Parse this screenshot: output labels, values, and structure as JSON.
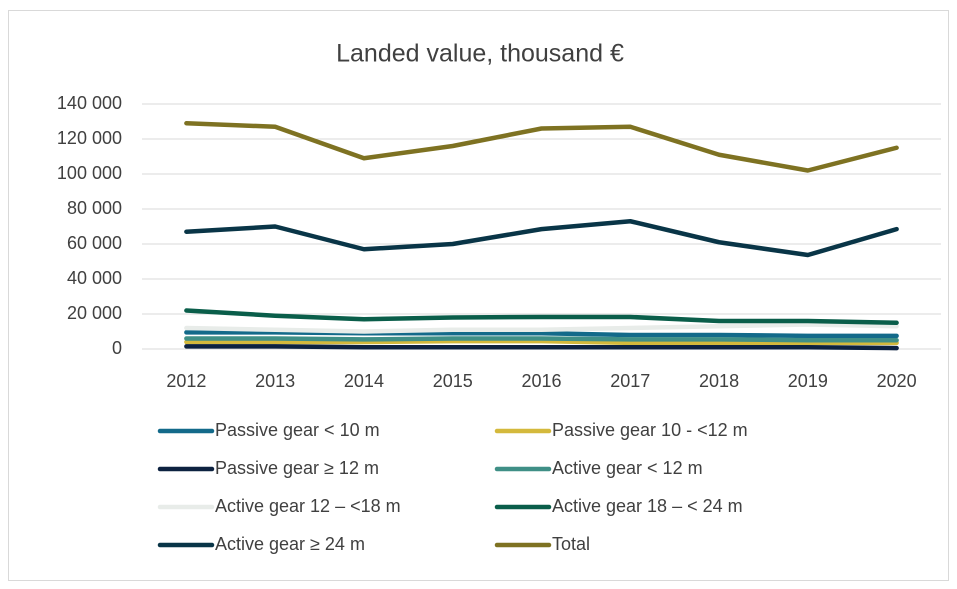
{
  "chart_data": {
    "type": "line",
    "title": "Landed value, thousand €",
    "x": [
      "2012",
      "2013",
      "2014",
      "2015",
      "2016",
      "2017",
      "2018",
      "2019",
      "2020"
    ],
    "series": [
      {
        "name": "Passive gear < 10 m",
        "color": "#136a8a",
        "values": [
          9500,
          9500,
          9000,
          9000,
          9000,
          8000,
          8000,
          7500,
          7500
        ]
      },
      {
        "name": "Passive gear  10 -  <12 m",
        "color": "#d4b93c",
        "values": [
          4000,
          4000,
          4000,
          4500,
          4500,
          3500,
          3500,
          3500,
          3500
        ]
      },
      {
        "name": "Passive gear  ≥ 12 m",
        "color": "#0d2240",
        "values": [
          1500,
          1500,
          1000,
          1000,
          1000,
          1000,
          1000,
          1000,
          500
        ]
      },
      {
        "name": "Active gear < 12 m",
        "color": "#3f8f86",
        "values": [
          6000,
          6000,
          5500,
          6000,
          6000,
          5500,
          5500,
          5000,
          5000
        ]
      },
      {
        "name": "Active gear 12 – <18 m",
        "color": "#e8ece9",
        "values": [
          12000,
          11000,
          10000,
          11000,
          11000,
          12000,
          13000,
          14000,
          13000
        ]
      },
      {
        "name": "Active gear 18 – < 24 m",
        "color": "#0a5e4a",
        "values": [
          22000,
          19000,
          17000,
          18000,
          18300,
          18300,
          16000,
          16000,
          15000
        ]
      },
      {
        "name": "Active gear ≥ 24 m",
        "color": "#093547",
        "values": [
          67000,
          70000,
          57000,
          60000,
          68500,
          73000,
          61000,
          53700,
          68500
        ]
      },
      {
        "name": "Total",
        "color": "#7e7222",
        "values": [
          129000,
          127000,
          109000,
          116000,
          126000,
          127000,
          111000,
          102000,
          115000
        ]
      }
    ],
    "ylim": [
      0,
      140000
    ],
    "yticks": [
      0,
      {
        "value": 20000,
        "label": "20 000"
      },
      {
        "value": 40000,
        "label": "40 000"
      },
      {
        "value": 60000,
        "label": "60 000"
      },
      {
        "value": 80000,
        "label": "80 000"
      },
      {
        "value": 100000,
        "label": "100 000"
      },
      {
        "value": 120000,
        "label": "120 000"
      },
      {
        "value": 140000,
        "label": "140 000"
      }
    ],
    "grid": true
  }
}
